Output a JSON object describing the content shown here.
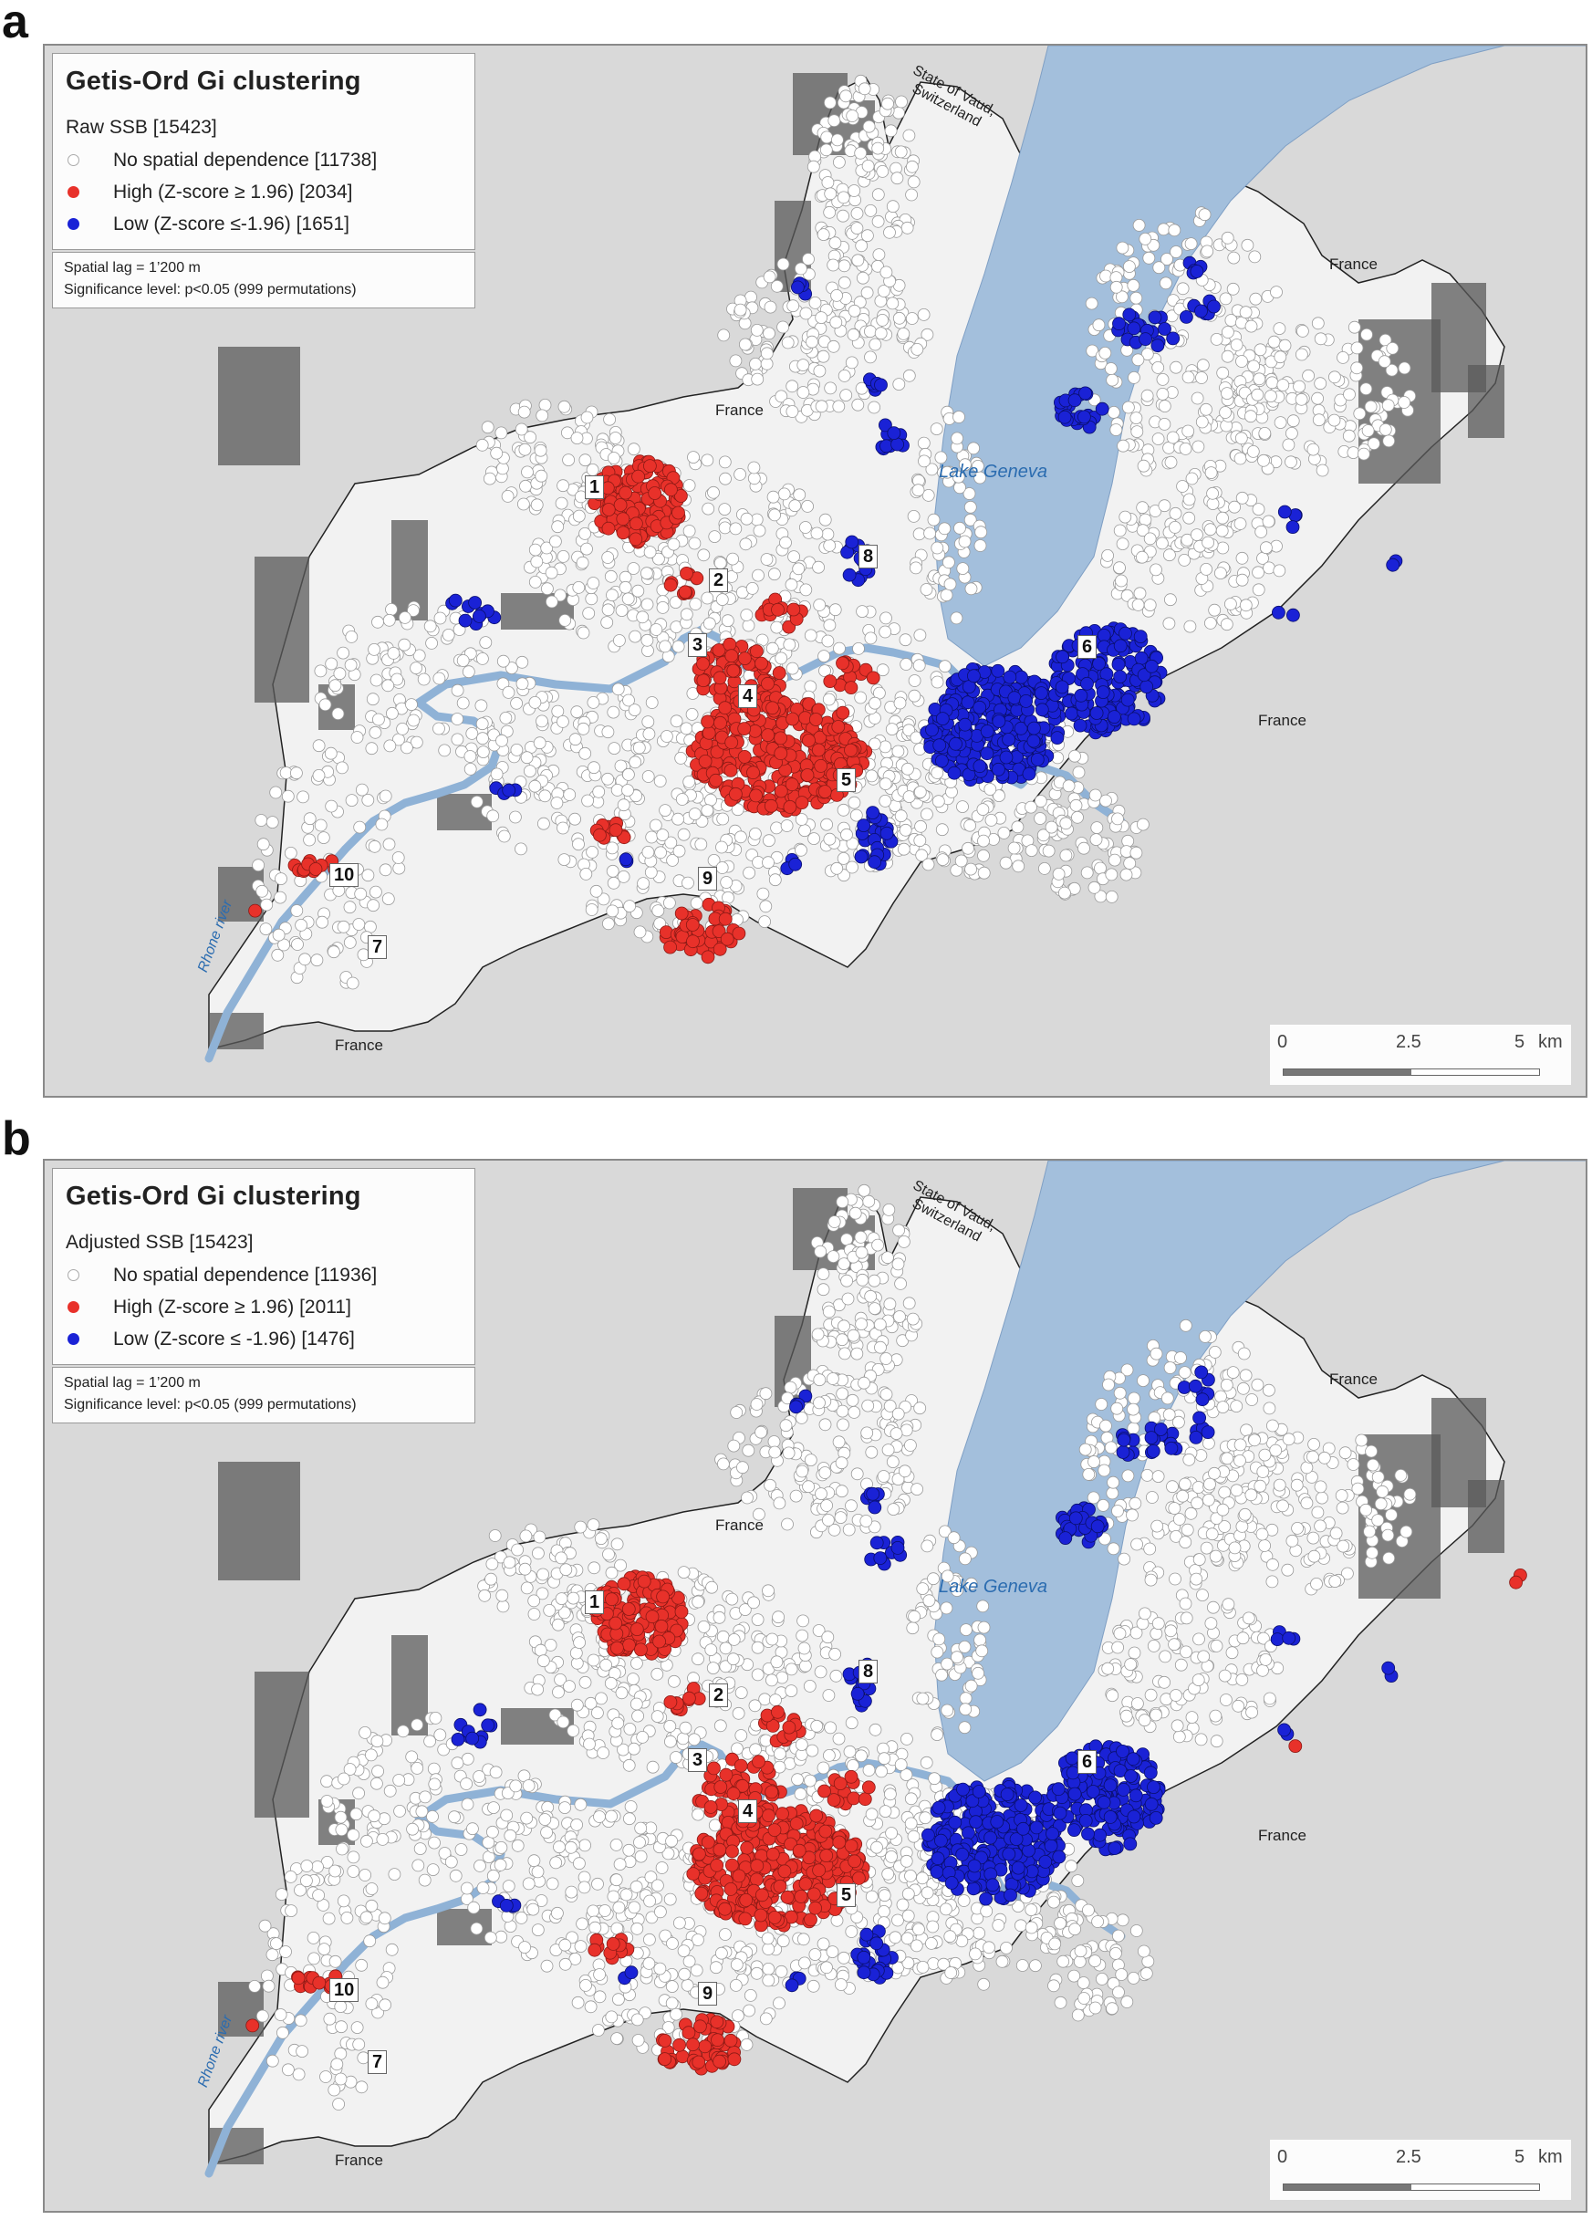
{
  "colors": {
    "background": "#d9d9d9",
    "canton": "#f2f2f2",
    "forest": "#5a5a5a",
    "lake": "#a3bfdc",
    "river": "#8fb2d6",
    "high": "#e8312a",
    "low": "#1a22d6",
    "none": "#ffffff"
  },
  "panels": [
    {
      "letter": "a",
      "legend": {
        "title": "Getis-Ord Gi clustering",
        "subtitle": "Raw SSB [15423]",
        "items": [
          {
            "label": "No spatial dependence [11738]",
            "color": "#ffffff"
          },
          {
            "label": "High (Z-score ≥ 1.96) [2034]",
            "color": "#e8312a"
          },
          {
            "label": "Low (Z-score ≤-1.96) [1651]",
            "color": "#1a22d6"
          }
        ]
      },
      "note": {
        "line1": "Spatial lag = 1’200 m",
        "line2": "Significance level: p<0.05 (999 permutations)"
      },
      "scale": {
        "t0": "0",
        "t1": "2.5",
        "t2": "5",
        "unit": "km"
      },
      "labels": {
        "france_ne": "France",
        "france_n": "France",
        "france_e": "France",
        "france_s": "France",
        "vaud": "State of Vaud, Switzerland",
        "lake": "Lake Geneva",
        "rhone": "Rhone river"
      },
      "zones": [
        "1",
        "2",
        "3",
        "4",
        "5",
        "6",
        "7",
        "8",
        "9",
        "10"
      ]
    },
    {
      "letter": "b",
      "legend": {
        "title": "Getis-Ord Gi clustering",
        "subtitle": "Adjusted SSB [15423]",
        "items": [
          {
            "label": "No spatial dependence [11936]",
            "color": "#ffffff"
          },
          {
            "label": "High (Z-score ≥ 1.96) [2011]",
            "color": "#e8312a"
          },
          {
            "label": "Low (Z-score ≤ -1.96) [1476]",
            "color": "#1a22d6"
          }
        ]
      },
      "note": {
        "line1": "Spatial lag = 1’200 m",
        "line2": "Significance level: p<0.05 (999 permutations)"
      },
      "scale": {
        "t0": "0",
        "t1": "2.5",
        "t2": "5",
        "unit": "km"
      },
      "labels": {
        "france_ne": "France",
        "france_n": "France",
        "france_e": "France",
        "france_s": "France",
        "vaud": "State of Vaud, Switzerland",
        "lake": "Lake Geneva",
        "rhone": "Rhone river"
      },
      "zones": [
        "1",
        "2",
        "3",
        "4",
        "5",
        "6",
        "7",
        "8",
        "9",
        "10"
      ]
    }
  ]
}
